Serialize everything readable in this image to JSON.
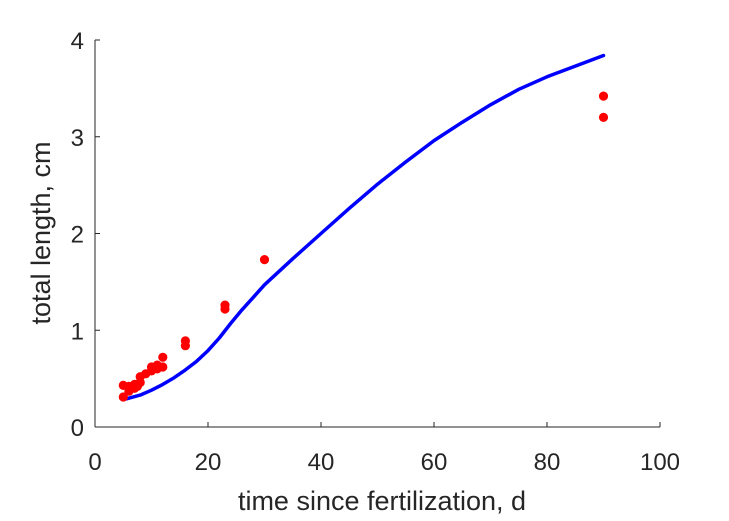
{
  "chart_data": {
    "type": "scatter",
    "xlabel": "time since fertilization, d",
    "ylabel": "total length, cm",
    "xlim": [
      0,
      100
    ],
    "ylim": [
      0,
      4
    ],
    "xticks": [
      0,
      20,
      40,
      60,
      80,
      100
    ],
    "yticks": [
      0,
      1,
      2,
      3,
      4
    ],
    "grid": false,
    "legend": "none",
    "series": [
      {
        "type": "scatter",
        "color": "#ff0000",
        "points": [
          [
            5,
            0.31
          ],
          [
            5,
            0.43
          ],
          [
            6,
            0.37
          ],
          [
            6,
            0.42
          ],
          [
            7,
            0.4
          ],
          [
            7,
            0.44
          ],
          [
            7.5,
            0.42
          ],
          [
            8,
            0.46
          ],
          [
            8,
            0.52
          ],
          [
            9,
            0.55
          ],
          [
            10,
            0.58
          ],
          [
            10,
            0.62
          ],
          [
            11,
            0.6
          ],
          [
            11,
            0.64
          ],
          [
            12,
            0.62
          ],
          [
            12,
            0.72
          ],
          [
            16,
            0.84
          ],
          [
            16,
            0.89
          ],
          [
            23,
            1.22
          ],
          [
            23,
            1.26
          ],
          [
            30,
            1.73
          ],
          [
            90,
            3.2
          ],
          [
            90,
            3.42
          ]
        ]
      },
      {
        "type": "line",
        "color": "#0000ff",
        "points": [
          [
            5.5,
            0.29
          ],
          [
            8,
            0.33
          ],
          [
            10,
            0.38
          ],
          [
            12,
            0.44
          ],
          [
            14,
            0.51
          ],
          [
            16,
            0.59
          ],
          [
            18,
            0.68
          ],
          [
            20,
            0.79
          ],
          [
            22,
            0.92
          ],
          [
            24,
            1.07
          ],
          [
            26,
            1.21
          ],
          [
            28,
            1.34
          ],
          [
            30,
            1.47
          ],
          [
            35,
            1.74
          ],
          [
            40,
            2.0
          ],
          [
            45,
            2.26
          ],
          [
            50,
            2.51
          ],
          [
            55,
            2.74
          ],
          [
            60,
            2.96
          ],
          [
            65,
            3.15
          ],
          [
            70,
            3.33
          ],
          [
            75,
            3.49
          ],
          [
            80,
            3.62
          ],
          [
            85,
            3.73
          ],
          [
            90,
            3.84
          ]
        ]
      }
    ]
  }
}
